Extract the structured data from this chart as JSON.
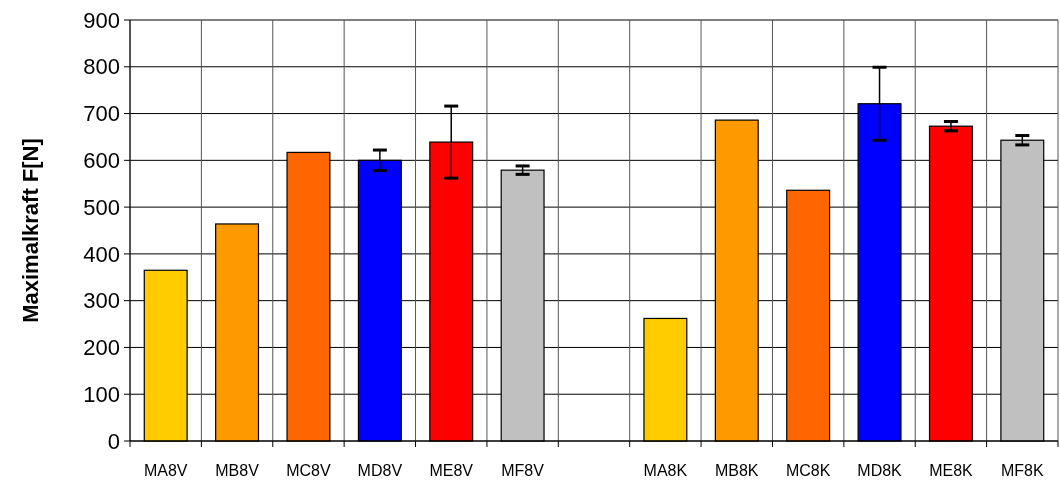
{
  "chart_data": {
    "type": "bar",
    "ylabel": "Maximalkraft F[N]",
    "categories": [
      "MA8V",
      "MB8V",
      "MC8V",
      "MD8V",
      "ME8V",
      "MF8V",
      null,
      "MA8K",
      "MB8K",
      "MC8K",
      "MD8K",
      "ME8K",
      "MF8K"
    ],
    "values": [
      365,
      464,
      617,
      600,
      639,
      579,
      null,
      262,
      686,
      536,
      721,
      673,
      643
    ],
    "errors": [
      null,
      null,
      null,
      22,
      77,
      9,
      null,
      null,
      null,
      null,
      78,
      10,
      10
    ],
    "colors": [
      "#ffcc00",
      "#ff9900",
      "#ff6600",
      "#0000ff",
      "#ff0000",
      "#c0c0c0",
      null,
      "#ffcc00",
      "#ff9900",
      "#ff6600",
      "#0000ff",
      "#ff0000",
      "#c0c0c0"
    ],
    "ylim": [
      0,
      900
    ],
    "yticks": [
      0,
      100,
      200,
      300,
      400,
      500,
      600,
      700,
      800,
      900
    ],
    "grid": true
  }
}
